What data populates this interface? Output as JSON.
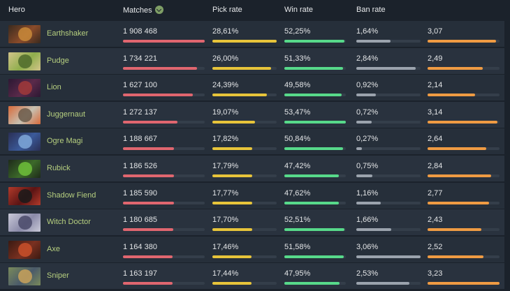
{
  "header": {
    "hero": "Hero",
    "matches": "Matches",
    "pick_rate": "Pick rate",
    "win_rate": "Win rate",
    "ban_rate": "Ban rate"
  },
  "colors": {
    "matches": "#e0666f",
    "pick": "#e7c43a",
    "win": "#57d98a",
    "ban": "#9ba3ad",
    "kda": "#ef9b43",
    "name": "#b6cf7f"
  },
  "heroes": [
    {
      "name": "Earthshaker",
      "icon": "earthshaker-portrait-icon",
      "matches": "1 908 468",
      "matches_value": 1908468,
      "pick": "28,61%",
      "pick_value": 28.61,
      "win": "52,25%",
      "win_value": 52.25,
      "ban": "1,64%",
      "ban_value": 1.64,
      "kda": "3,07",
      "kda_value": 3.07
    },
    {
      "name": "Pudge",
      "icon": "pudge-portrait-icon",
      "matches": "1 734 221",
      "matches_value": 1734221,
      "pick": "26,00%",
      "pick_value": 26.0,
      "win": "51,33%",
      "win_value": 51.33,
      "ban": "2,84%",
      "ban_value": 2.84,
      "kda": "2,49",
      "kda_value": 2.49
    },
    {
      "name": "Lion",
      "icon": "lion-portrait-icon",
      "matches": "1 627 100",
      "matches_value": 1627100,
      "pick": "24,39%",
      "pick_value": 24.39,
      "win": "49,58%",
      "win_value": 49.58,
      "ban": "0,92%",
      "ban_value": 0.92,
      "kda": "2,14",
      "kda_value": 2.14
    },
    {
      "name": "Juggernaut",
      "icon": "juggernaut-portrait-icon",
      "matches": "1 272 137",
      "matches_value": 1272137,
      "pick": "19,07%",
      "pick_value": 19.07,
      "win": "53,47%",
      "win_value": 53.47,
      "ban": "0,72%",
      "ban_value": 0.72,
      "kda": "3,14",
      "kda_value": 3.14
    },
    {
      "name": "Ogre Magi",
      "icon": "ogre-magi-portrait-icon",
      "matches": "1 188 667",
      "matches_value": 1188667,
      "pick": "17,82%",
      "pick_value": 17.82,
      "win": "50,84%",
      "win_value": 50.84,
      "ban": "0,27%",
      "ban_value": 0.27,
      "kda": "2,64",
      "kda_value": 2.64
    },
    {
      "name": "Rubick",
      "icon": "rubick-portrait-icon",
      "matches": "1 186 526",
      "matches_value": 1186526,
      "pick": "17,79%",
      "pick_value": 17.79,
      "win": "47,42%",
      "win_value": 47.42,
      "ban": "0,75%",
      "ban_value": 0.75,
      "kda": "2,84",
      "kda_value": 2.84
    },
    {
      "name": "Shadow Fiend",
      "icon": "shadow-fiend-portrait-icon",
      "matches": "1 185 590",
      "matches_value": 1185590,
      "pick": "17,77%",
      "pick_value": 17.77,
      "win": "47,62%",
      "win_value": 47.62,
      "ban": "1,16%",
      "ban_value": 1.16,
      "kda": "2,77",
      "kda_value": 2.77
    },
    {
      "name": "Witch Doctor",
      "icon": "witch-doctor-portrait-icon",
      "matches": "1 180 685",
      "matches_value": 1180685,
      "pick": "17,70%",
      "pick_value": 17.7,
      "win": "52,51%",
      "win_value": 52.51,
      "ban": "1,66%",
      "ban_value": 1.66,
      "kda": "2,43",
      "kda_value": 2.43
    },
    {
      "name": "Axe",
      "icon": "axe-portrait-icon",
      "matches": "1 164 380",
      "matches_value": 1164380,
      "pick": "17,46%",
      "pick_value": 17.46,
      "win": "51,58%",
      "win_value": 51.58,
      "ban": "3,06%",
      "ban_value": 3.06,
      "kda": "2,52",
      "kda_value": 2.52
    },
    {
      "name": "Sniper",
      "icon": "sniper-portrait-icon",
      "matches": "1 163 197",
      "matches_value": 1163197,
      "pick": "17,44%",
      "pick_value": 17.44,
      "win": "47,95%",
      "win_value": 47.95,
      "ban": "2,53%",
      "ban_value": 2.53,
      "kda": "3,23",
      "kda_value": 3.23
    }
  ]
}
